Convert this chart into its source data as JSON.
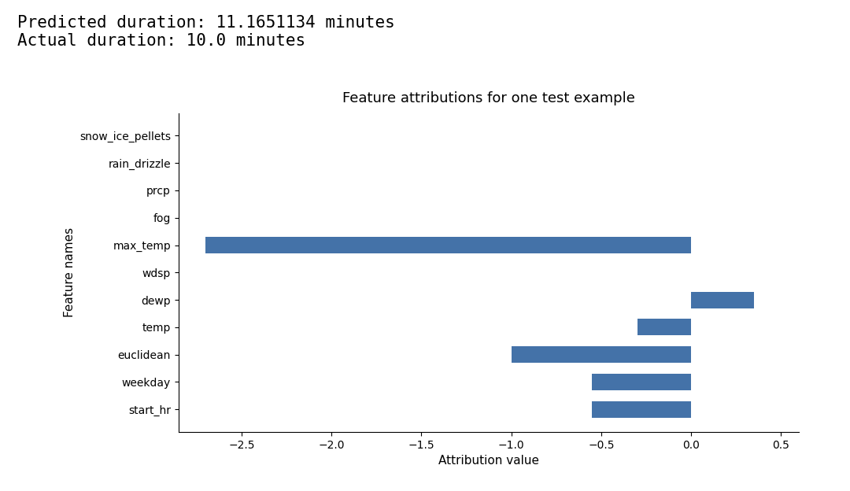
{
  "title": "Feature attributions for one test example",
  "suptitle_line1": "Predicted duration: 11.1651134 minutes",
  "suptitle_line2": "Actual duration: 10.0 minutes",
  "xlabel": "Attribution value",
  "ylabel": "Feature names",
  "features": [
    "start_hr",
    "weekday",
    "euclidean",
    "temp",
    "dewp",
    "wdsp",
    "max_temp",
    "fog",
    "prcp",
    "rain_drizzle",
    "snow_ice_pellets"
  ],
  "values": [
    -0.55,
    -0.55,
    -1.0,
    -0.3,
    0.35,
    0.0,
    -2.7,
    0.0,
    0.0,
    0.0,
    0.0
  ],
  "bar_color": "#4472a8",
  "xlim": [
    -2.85,
    0.6
  ],
  "xticks": [
    -2.5,
    -2.0,
    -1.5,
    -1.0,
    -0.5,
    0.0,
    0.5
  ],
  "background_color": "#ffffff",
  "suptitle_fontsize": 15,
  "title_fontsize": 13,
  "axis_label_fontsize": 11,
  "tick_fontsize": 10,
  "suptitle_font": "monospace"
}
